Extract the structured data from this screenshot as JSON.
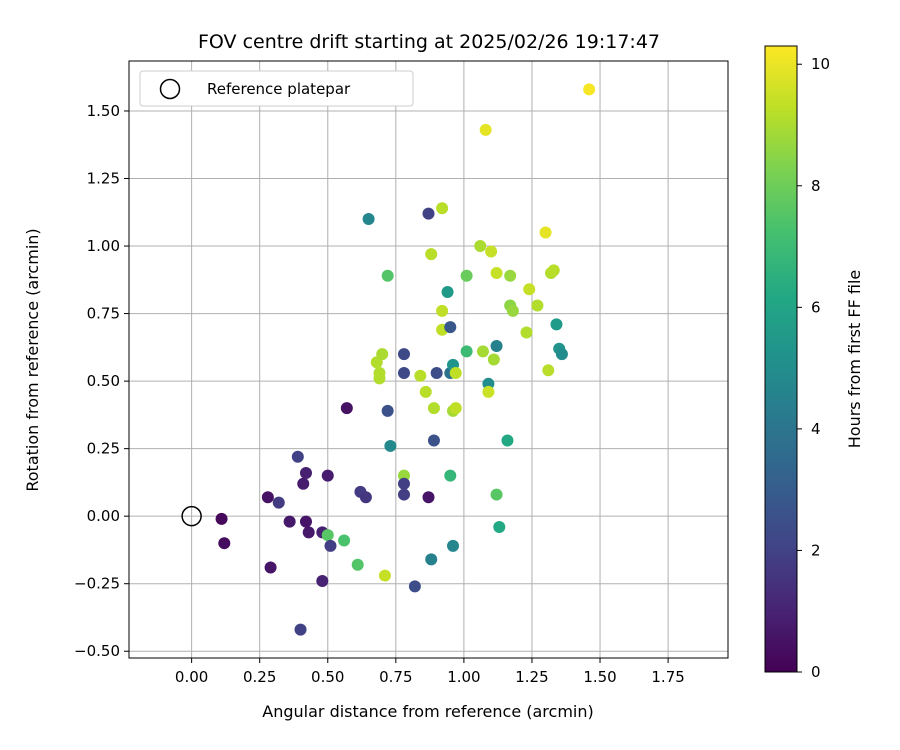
{
  "chart_data": {
    "type": "scatter",
    "title": "FOV centre drift starting at 2025/02/26 19:17:47",
    "xlabel": "Angular distance from reference (arcmin)",
    "ylabel": "Rotation from reference (arcmin)",
    "xlim": [
      -0.23,
      1.97
    ],
    "ylim": [
      -0.525,
      1.685
    ],
    "xticks": [
      "0.00",
      "0.25",
      "0.50",
      "0.75",
      "1.00",
      "1.25",
      "1.50",
      "1.75"
    ],
    "yticks": [
      "−0.50",
      "−0.25",
      "0.00",
      "0.25",
      "0.50",
      "0.75",
      "1.00",
      "1.25",
      "1.50"
    ],
    "grid": true,
    "legend": {
      "placement": "upper-left",
      "entries": [
        "Reference platepar"
      ]
    },
    "reference_point": {
      "x": 0.0,
      "y": 0.0
    },
    "colorbar": {
      "label": "Hours from first FF file",
      "range": [
        0,
        10.3
      ],
      "ticks": [
        "0",
        "2",
        "4",
        "6",
        "8",
        "10"
      ],
      "colormap": "viridis"
    },
    "points": [
      {
        "x": 0.11,
        "y": -0.01,
        "h": 0.2
      },
      {
        "x": 0.12,
        "y": -0.1,
        "h": 0.3
      },
      {
        "x": 0.28,
        "y": 0.07,
        "h": 0.5
      },
      {
        "x": 0.29,
        "y": -0.19,
        "h": 0.6
      },
      {
        "x": 0.32,
        "y": 0.05,
        "h": 1.8
      },
      {
        "x": 0.36,
        "y": -0.02,
        "h": 0.7
      },
      {
        "x": 0.39,
        "y": 0.22,
        "h": 2.0
      },
      {
        "x": 0.4,
        "y": -0.42,
        "h": 2.0
      },
      {
        "x": 0.41,
        "y": 0.12,
        "h": 0.8
      },
      {
        "x": 0.42,
        "y": 0.16,
        "h": 0.9
      },
      {
        "x": 0.42,
        "y": -0.02,
        "h": 0.6
      },
      {
        "x": 0.43,
        "y": -0.06,
        "h": 0.7
      },
      {
        "x": 0.48,
        "y": -0.06,
        "h": 0.9
      },
      {
        "x": 0.48,
        "y": -0.24,
        "h": 1.0
      },
      {
        "x": 0.5,
        "y": 0.15,
        "h": 0.8
      },
      {
        "x": 0.5,
        "y": -0.07,
        "h": 7.6
      },
      {
        "x": 0.51,
        "y": -0.11,
        "h": 1.9
      },
      {
        "x": 0.56,
        "y": -0.09,
        "h": 7.3
      },
      {
        "x": 0.57,
        "y": 0.4,
        "h": 0.5
      },
      {
        "x": 0.61,
        "y": -0.18,
        "h": 7.5
      },
      {
        "x": 0.62,
        "y": 0.09,
        "h": 1.8
      },
      {
        "x": 0.64,
        "y": 0.07,
        "h": 1.6
      },
      {
        "x": 0.65,
        "y": 1.1,
        "h": 4.7
      },
      {
        "x": 0.68,
        "y": 0.57,
        "h": 9.1
      },
      {
        "x": 0.69,
        "y": 0.51,
        "h": 9.1
      },
      {
        "x": 0.69,
        "y": 0.53,
        "h": 9.1
      },
      {
        "x": 0.7,
        "y": 0.6,
        "h": 9.0
      },
      {
        "x": 0.71,
        "y": -0.22,
        "h": 9.4
      },
      {
        "x": 0.72,
        "y": 0.89,
        "h": 7.5
      },
      {
        "x": 0.72,
        "y": 0.39,
        "h": 2.5
      },
      {
        "x": 0.73,
        "y": 0.26,
        "h": 4.8
      },
      {
        "x": 0.78,
        "y": 0.15,
        "h": 8.7
      },
      {
        "x": 0.78,
        "y": 0.08,
        "h": 1.9
      },
      {
        "x": 0.78,
        "y": 0.12,
        "h": 1.9
      },
      {
        "x": 0.78,
        "y": 0.6,
        "h": 2.3
      },
      {
        "x": 0.78,
        "y": 0.53,
        "h": 2.3
      },
      {
        "x": 0.82,
        "y": -0.26,
        "h": 2.4
      },
      {
        "x": 0.84,
        "y": 0.52,
        "h": 9.2
      },
      {
        "x": 0.86,
        "y": 0.46,
        "h": 9.2
      },
      {
        "x": 0.87,
        "y": 0.07,
        "h": 0.6
      },
      {
        "x": 0.87,
        "y": 1.12,
        "h": 2.0
      },
      {
        "x": 0.88,
        "y": -0.16,
        "h": 4.5
      },
      {
        "x": 0.88,
        "y": 0.97,
        "h": 9.2
      },
      {
        "x": 0.89,
        "y": 0.4,
        "h": 9.1
      },
      {
        "x": 0.89,
        "y": 0.28,
        "h": 2.6
      },
      {
        "x": 0.9,
        "y": 0.53,
        "h": 2.4
      },
      {
        "x": 0.92,
        "y": 1.14,
        "h": 9.2
      },
      {
        "x": 0.92,
        "y": 0.76,
        "h": 9.3
      },
      {
        "x": 0.92,
        "y": 0.69,
        "h": 9.3
      },
      {
        "x": 0.94,
        "y": 0.83,
        "h": 5.5
      },
      {
        "x": 0.95,
        "y": 0.15,
        "h": 6.8
      },
      {
        "x": 0.95,
        "y": 0.7,
        "h": 2.8
      },
      {
        "x": 0.95,
        "y": 0.53,
        "h": 3.8
      },
      {
        "x": 0.96,
        "y": 0.39,
        "h": 8.9
      },
      {
        "x": 0.96,
        "y": -0.11,
        "h": 4.7
      },
      {
        "x": 0.96,
        "y": 0.56,
        "h": 5.3
      },
      {
        "x": 0.97,
        "y": 0.53,
        "h": 9.3
      },
      {
        "x": 0.97,
        "y": 0.4,
        "h": 9.3
      },
      {
        "x": 1.01,
        "y": 0.61,
        "h": 7.0
      },
      {
        "x": 1.01,
        "y": 0.89,
        "h": 7.9
      },
      {
        "x": 1.06,
        "y": 1.0,
        "h": 9.0
      },
      {
        "x": 1.07,
        "y": 0.61,
        "h": 8.9
      },
      {
        "x": 1.08,
        "y": 1.43,
        "h": 9.9
      },
      {
        "x": 1.09,
        "y": 0.49,
        "h": 5.0
      },
      {
        "x": 1.09,
        "y": 0.46,
        "h": 9.5
      },
      {
        "x": 1.1,
        "y": 0.98,
        "h": 9.4
      },
      {
        "x": 1.11,
        "y": 0.58,
        "h": 8.9
      },
      {
        "x": 1.12,
        "y": 0.9,
        "h": 9.4
      },
      {
        "x": 1.12,
        "y": 0.63,
        "h": 4.5
      },
      {
        "x": 1.12,
        "y": 0.08,
        "h": 7.6
      },
      {
        "x": 1.13,
        "y": -0.04,
        "h": 6.2
      },
      {
        "x": 1.16,
        "y": 0.28,
        "h": 6.2
      },
      {
        "x": 1.17,
        "y": 0.89,
        "h": 8.7
      },
      {
        "x": 1.17,
        "y": 0.78,
        "h": 8.5
      },
      {
        "x": 1.18,
        "y": 0.76,
        "h": 8.7
      },
      {
        "x": 1.23,
        "y": 0.68,
        "h": 9.1
      },
      {
        "x": 1.24,
        "y": 0.84,
        "h": 9.4
      },
      {
        "x": 1.27,
        "y": 0.78,
        "h": 9.1
      },
      {
        "x": 1.3,
        "y": 1.05,
        "h": 9.9
      },
      {
        "x": 1.31,
        "y": 0.54,
        "h": 9.2
      },
      {
        "x": 1.32,
        "y": 0.9,
        "h": 9.1
      },
      {
        "x": 1.33,
        "y": 0.91,
        "h": 9.2
      },
      {
        "x": 1.34,
        "y": 0.71,
        "h": 5.6
      },
      {
        "x": 1.35,
        "y": 0.62,
        "h": 5.3
      },
      {
        "x": 1.36,
        "y": 0.6,
        "h": 5.0
      },
      {
        "x": 1.46,
        "y": 1.58,
        "h": 10.2
      }
    ]
  }
}
